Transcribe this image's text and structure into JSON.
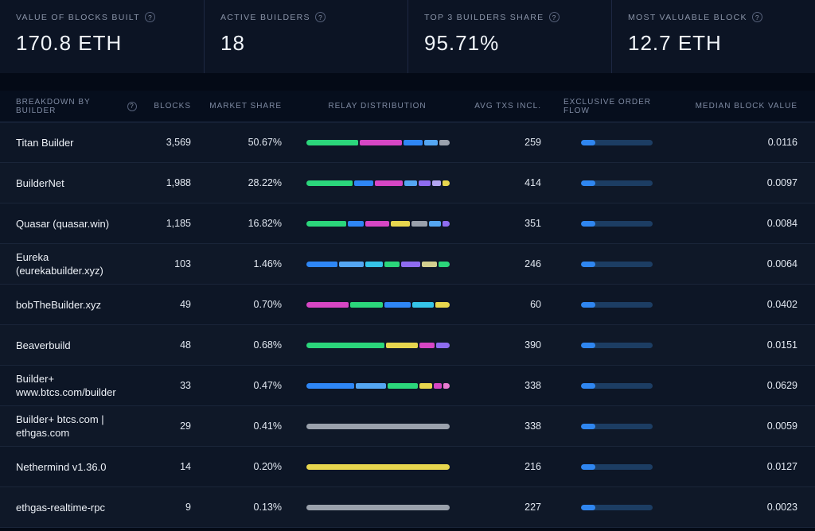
{
  "icons": {
    "help": "?"
  },
  "colors": {
    "accent_blue": "#2f86f0",
    "eof_track": "#1c3d63",
    "green": "#2bd67b",
    "magenta": "#d646c4",
    "blue": "#2e86f5",
    "sky": "#54a6f2",
    "cyan": "#35c4e8",
    "purple": "#8e6cf0",
    "lavender": "#b4a6f2",
    "yellow": "#e7d64e",
    "khaki": "#d3cf8f",
    "gray": "#9aa1ac",
    "pink": "#e87bd0"
  },
  "stats": [
    {
      "label": "VALUE OF BLOCKS BUILT",
      "value": "170.8 ETH"
    },
    {
      "label": "ACTIVE BUILDERS",
      "value": "18"
    },
    {
      "label": "TOP 3 BUILDERS SHARE",
      "value": "95.71%"
    },
    {
      "label": "MOST VALUABLE BLOCK",
      "value": "12.7 ETH"
    }
  ],
  "table": {
    "headers": {
      "builder": "BREAKDOWN BY BUILDER",
      "blocks": "BLOCKS",
      "market_share": "MARKET SHARE",
      "relay": "RELAY DISTRIBUTION",
      "avg_txs": "AVG TXS INCL.",
      "eof": "EXCLUSIVE ORDER FLOW",
      "median": "MEDIAN BLOCK VALUE"
    },
    "rows": [
      {
        "builder": "Titan Builder",
        "blocks": "3,569",
        "market_share": "50.67%",
        "relay": [
          {
            "c": "#2bd67b",
            "w": 36
          },
          {
            "c": "#d646c4",
            "w": 30
          },
          {
            "c": "#2e86f5",
            "w": 13
          },
          {
            "c": "#54a6f2",
            "w": 10
          },
          {
            "c": "#9aa1ac",
            "w": 7
          }
        ],
        "avg_txs": "259",
        "eof_pct": 20,
        "median": "0.0116"
      },
      {
        "builder": "BuilderNet",
        "blocks": "1,988",
        "market_share": "28.22%",
        "relay": [
          {
            "c": "#2bd67b",
            "w": 32
          },
          {
            "c": "#2e86f5",
            "w": 13
          },
          {
            "c": "#d646c4",
            "w": 19
          },
          {
            "c": "#54a6f2",
            "w": 9
          },
          {
            "c": "#8e6cf0",
            "w": 8
          },
          {
            "c": "#b4a6f2",
            "w": 6
          },
          {
            "c": "#e7d64e",
            "w": 5
          }
        ],
        "avg_txs": "414",
        "eof_pct": 20,
        "median": "0.0097"
      },
      {
        "builder": "Quasar (quasar.win)",
        "blocks": "1,185",
        "market_share": "16.82%",
        "relay": [
          {
            "c": "#2bd67b",
            "w": 27
          },
          {
            "c": "#2e86f5",
            "w": 11
          },
          {
            "c": "#d646c4",
            "w": 16
          },
          {
            "c": "#e7d64e",
            "w": 13
          },
          {
            "c": "#9aa1ac",
            "w": 11
          },
          {
            "c": "#54a6f2",
            "w": 8
          },
          {
            "c": "#8e6cf0",
            "w": 5
          }
        ],
        "avg_txs": "351",
        "eof_pct": 20,
        "median": "0.0084"
      },
      {
        "builder": "Eureka (eurekabuilder.xyz)",
        "blocks": "103",
        "market_share": "1.46%",
        "relay": [
          {
            "c": "#2e86f5",
            "w": 20
          },
          {
            "c": "#54a6f2",
            "w": 16
          },
          {
            "c": "#35c4e8",
            "w": 11
          },
          {
            "c": "#2bd67b",
            "w": 10
          },
          {
            "c": "#8e6cf0",
            "w": 12
          },
          {
            "c": "#d3cf8f",
            "w": 10
          },
          {
            "c": "#2bd67b",
            "w": 7
          }
        ],
        "avg_txs": "246",
        "eof_pct": 20,
        "median": "0.0064"
      },
      {
        "builder": "bobTheBuilder.xyz",
        "blocks": "49",
        "market_share": "0.70%",
        "relay": [
          {
            "c": "#d646c4",
            "w": 27
          },
          {
            "c": "#2bd67b",
            "w": 21
          },
          {
            "c": "#2e86f5",
            "w": 17
          },
          {
            "c": "#35c4e8",
            "w": 14
          },
          {
            "c": "#e7d64e",
            "w": 9
          }
        ],
        "avg_txs": "60",
        "eof_pct": 20,
        "median": "0.0402"
      },
      {
        "builder": "Beaverbuild",
        "blocks": "48",
        "market_share": "0.68%",
        "relay": [
          {
            "c": "#2bd67b",
            "w": 51
          },
          {
            "c": "#e7d64e",
            "w": 21
          },
          {
            "c": "#d646c4",
            "w": 10
          },
          {
            "c": "#8e6cf0",
            "w": 9
          }
        ],
        "avg_txs": "390",
        "eof_pct": 20,
        "median": "0.0151"
      },
      {
        "builder": "Builder+ www.btcs.com/builder",
        "blocks": "33",
        "market_share": "0.47%",
        "relay": [
          {
            "c": "#2e86f5",
            "w": 30
          },
          {
            "c": "#54a6f2",
            "w": 19
          },
          {
            "c": "#2bd67b",
            "w": 19
          },
          {
            "c": "#e7d64e",
            "w": 8
          },
          {
            "c": "#d646c4",
            "w": 5
          },
          {
            "c": "#e87bd0",
            "w": 4
          }
        ],
        "avg_txs": "338",
        "eof_pct": 20,
        "median": "0.0629"
      },
      {
        "builder": "Builder+ btcs.com | ethgas.com",
        "blocks": "29",
        "market_share": "0.41%",
        "relay": [
          {
            "c": "#9aa1ac",
            "w": 100
          }
        ],
        "avg_txs": "338",
        "eof_pct": 20,
        "median": "0.0059"
      },
      {
        "builder": "Nethermind v1.36.0",
        "blocks": "14",
        "market_share": "0.20%",
        "relay": [
          {
            "c": "#e7d64e",
            "w": 100
          }
        ],
        "avg_txs": "216",
        "eof_pct": 20,
        "median": "0.0127"
      },
      {
        "builder": "ethgas-realtime-rpc",
        "blocks": "9",
        "market_share": "0.13%",
        "relay": [
          {
            "c": "#9aa1ac",
            "w": 100
          }
        ],
        "avg_txs": "227",
        "eof_pct": 20,
        "median": "0.0023"
      }
    ]
  }
}
